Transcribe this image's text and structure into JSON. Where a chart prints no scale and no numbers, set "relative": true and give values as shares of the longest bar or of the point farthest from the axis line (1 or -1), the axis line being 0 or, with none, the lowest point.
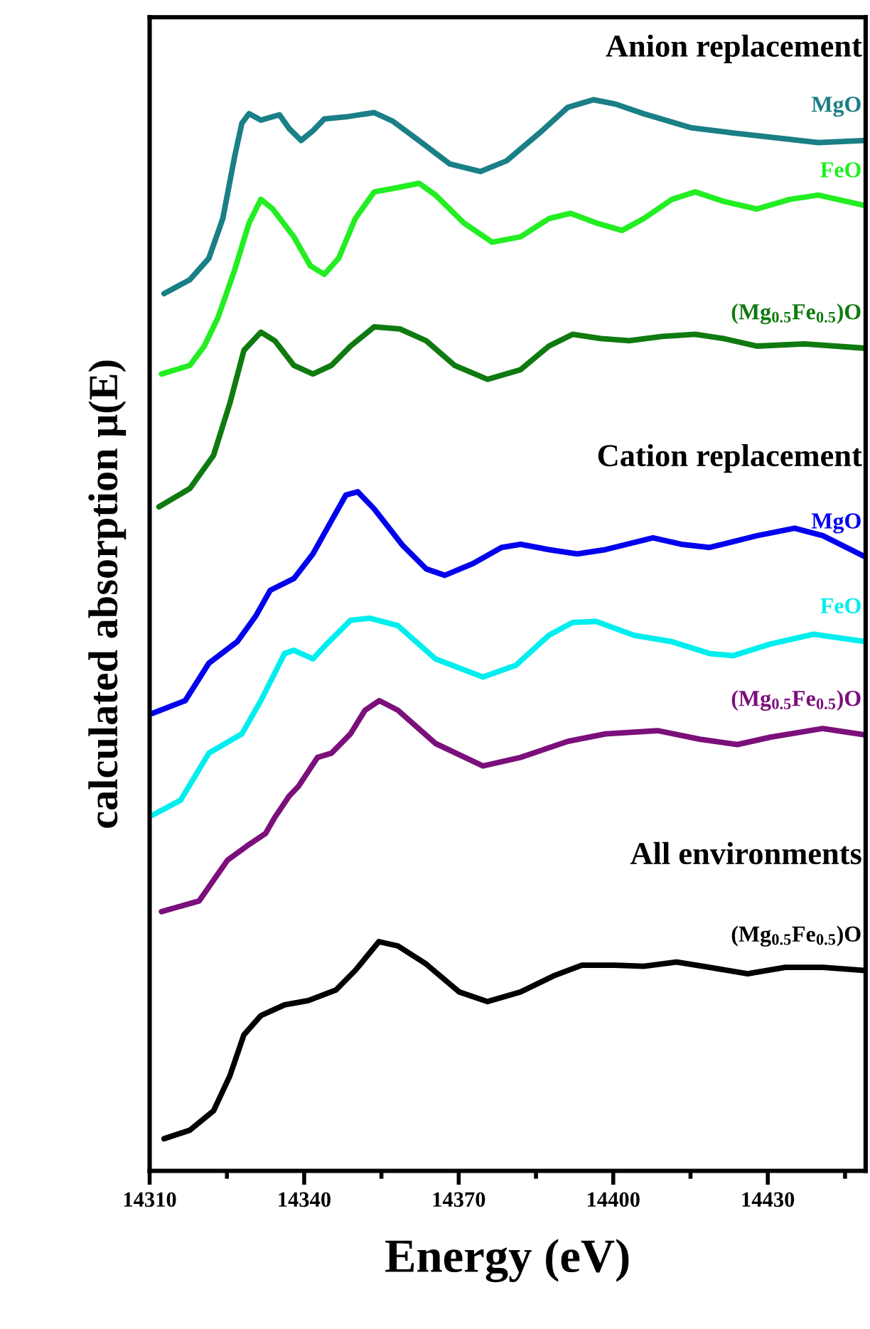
{
  "chart_data": {
    "type": "line",
    "relative": true,
    "xlabel": "Energy (eV)",
    "ylabel": "calculated absorption μ(E)",
    "xlim": [
      14310,
      14449
    ],
    "xticks": [
      14310,
      14340,
      14370,
      14400,
      14430
    ],
    "tick_labels": "x",
    "grid": false,
    "legend": false,
    "annotations": [
      "Anion replacement",
      "Cation replacement",
      "All environments"
    ],
    "series": [
      {
        "name": "MgO",
        "color": "#1a7f86",
        "x": [
          14312.8,
          14317.8,
          14321.5,
          14324.2,
          14326.5,
          14327.9,
          14329.3,
          14331.6,
          14335.2,
          14337.1,
          14339.4,
          14341.7,
          14343.9,
          14348.1,
          14353.6,
          14357.2,
          14362.8,
          14368.3,
          14374.2,
          14379.3,
          14385.7,
          14391.2,
          14396.2,
          14400.4,
          14405.9,
          14415.0,
          14423.3,
          14432.5,
          14439.8,
          14449
        ],
        "values": [
          0.819,
          0.832,
          0.852,
          0.889,
          0.947,
          0.978,
          0.987,
          0.981,
          0.986,
          0.973,
          0.962,
          0.971,
          0.982,
          0.984,
          0.988,
          0.98,
          0.96,
          0.94,
          0.933,
          0.943,
          0.969,
          0.993,
          1.0,
          0.996,
          0.987,
          0.974,
          0.969,
          0.964,
          0.96,
          0.962
        ]
      },
      {
        "name": "FeO",
        "color": "#22ee22",
        "x": [
          14312.3,
          14317.8,
          14320.6,
          14323.3,
          14326.5,
          14329.3,
          14331.6,
          14333.9,
          14338.0,
          14341.2,
          14343.9,
          14346.7,
          14349.9,
          14353.6,
          14358.2,
          14362.3,
          14365.5,
          14371.0,
          14376.5,
          14382.0,
          14387.5,
          14391.7,
          14396.7,
          14401.7,
          14405.9,
          14411.4,
          14415.9,
          14421.5,
          14427.9,
          14434.3,
          14439.8,
          14449
        ],
        "values": [
          0.744,
          0.752,
          0.77,
          0.797,
          0.841,
          0.885,
          0.907,
          0.898,
          0.872,
          0.845,
          0.837,
          0.852,
          0.889,
          0.914,
          0.918,
          0.922,
          0.911,
          0.885,
          0.867,
          0.872,
          0.889,
          0.894,
          0.885,
          0.878,
          0.889,
          0.907,
          0.914,
          0.905,
          0.898,
          0.907,
          0.911,
          0.901
        ]
      },
      {
        "name": "(Mg$_{0.5}$Fe$_{0.5}$)O",
        "color": "#0f7a0f",
        "x": [
          14311.8,
          14317.8,
          14322.4,
          14325.6,
          14328.3,
          14331.6,
          14334.3,
          14338.0,
          14341.7,
          14345.3,
          14349.0,
          14353.6,
          14358.6,
          14363.7,
          14369.2,
          14375.6,
          14382.0,
          14387.5,
          14392.1,
          14397.6,
          14403.1,
          14409.5,
          14415.9,
          14421.5,
          14427.9,
          14437.1,
          14449
        ],
        "values": [
          0.62,
          0.637,
          0.668,
          0.717,
          0.766,
          0.783,
          0.775,
          0.752,
          0.744,
          0.752,
          0.77,
          0.788,
          0.786,
          0.775,
          0.752,
          0.739,
          0.748,
          0.77,
          0.781,
          0.777,
          0.775,
          0.779,
          0.781,
          0.777,
          0.77,
          0.772,
          0.768
        ]
      },
      {
        "name": "MgO",
        "color": "#0000ee",
        "x": [
          14310.5,
          14316.9,
          14321.5,
          14327.0,
          14330.6,
          14333.4,
          14338.0,
          14341.7,
          14345.3,
          14348.1,
          14350.4,
          14353.6,
          14359.1,
          14363.7,
          14367.3,
          14372.8,
          14378.3,
          14382.0,
          14387.5,
          14393.0,
          14398.5,
          14407.7,
          14413.2,
          14418.7,
          14427.9,
          14435.2,
          14440.7,
          14449
        ],
        "values": [
          0.427,
          0.439,
          0.474,
          0.494,
          0.518,
          0.542,
          0.553,
          0.576,
          0.607,
          0.631,
          0.634,
          0.618,
          0.584,
          0.562,
          0.556,
          0.567,
          0.582,
          0.585,
          0.58,
          0.576,
          0.58,
          0.591,
          0.585,
          0.582,
          0.593,
          0.6,
          0.593,
          0.573
        ]
      },
      {
        "name": "FeO",
        "color": "#00eeee",
        "x": [
          14310.5,
          14316.0,
          14321.5,
          14327.9,
          14331.6,
          14336.2,
          14338.0,
          14341.7,
          14344.4,
          14349.0,
          14352.7,
          14358.2,
          14365.5,
          14374.7,
          14381.1,
          14387.5,
          14392.1,
          14396.7,
          14404.0,
          14411.4,
          14418.7,
          14423.3,
          14430.6,
          14438.9,
          14449
        ],
        "values": [
          0.332,
          0.346,
          0.39,
          0.408,
          0.439,
          0.483,
          0.486,
          0.478,
          0.492,
          0.514,
          0.516,
          0.509,
          0.478,
          0.461,
          0.472,
          0.5,
          0.512,
          0.513,
          0.5,
          0.494,
          0.483,
          0.481,
          0.492,
          0.501,
          0.494
        ]
      },
      {
        "name": "(Mg$_{0.5}$Fe$_{0.5}$)O",
        "color": "#7b0f7b",
        "x": [
          14312.3,
          14319.6,
          14325.1,
          14328.8,
          14332.5,
          14334.3,
          14337.1,
          14338.9,
          14342.6,
          14345.3,
          14349.0,
          14351.8,
          14354.6,
          14358.2,
          14365.5,
          14374.7,
          14382.0,
          14391.2,
          14398.5,
          14408.6,
          14416.8,
          14424.1,
          14430.6,
          14440.7,
          14449
        ],
        "values": [
          0.242,
          0.252,
          0.29,
          0.303,
          0.315,
          0.33,
          0.35,
          0.359,
          0.386,
          0.39,
          0.408,
          0.43,
          0.439,
          0.43,
          0.399,
          0.378,
          0.386,
          0.401,
          0.408,
          0.411,
          0.403,
          0.398,
          0.405,
          0.413,
          0.407
        ]
      },
      {
        "name": "(Mg$_{0.5}$Fe$_{0.5}$)O",
        "color": "#000000",
        "x": [
          14312.8,
          14317.8,
          14322.4,
          14325.6,
          14328.3,
          14331.6,
          14336.2,
          14340.8,
          14346.2,
          14349.9,
          14354.5,
          14358.2,
          14363.7,
          14370.1,
          14375.6,
          14382.0,
          14388.4,
          14393.9,
          14400.4,
          14405.9,
          14412.3,
          14418.7,
          14426.1,
          14433.4,
          14440.7,
          14449
        ],
        "values": [
          0.03,
          0.038,
          0.056,
          0.089,
          0.127,
          0.145,
          0.155,
          0.159,
          0.169,
          0.187,
          0.214,
          0.21,
          0.193,
          0.167,
          0.158,
          0.167,
          0.182,
          0.192,
          0.192,
          0.191,
          0.195,
          0.19,
          0.184,
          0.19,
          0.19,
          0.187
        ]
      }
    ]
  }
}
